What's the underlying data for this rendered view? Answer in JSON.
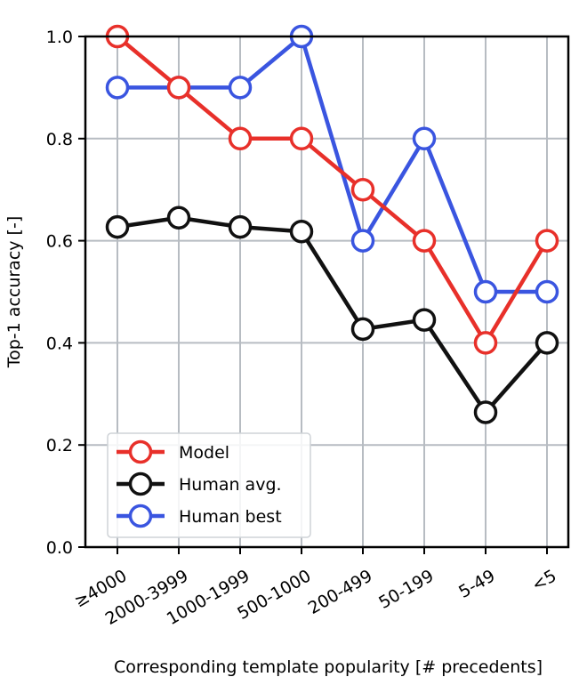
{
  "chart_data": {
    "type": "line",
    "xlabel": "Corresponding template popularity [# precedents]",
    "ylabel": "Top-1 accuracy [-]",
    "categories": [
      "≥4000",
      "2000-3999",
      "1000-1999",
      "500-1000",
      "200-499",
      "50-199",
      "5-49",
      "<5"
    ],
    "ylim": [
      0.0,
      1.0
    ],
    "yticks": [
      "0.0",
      "0.2",
      "0.4",
      "0.6",
      "0.8",
      "1.0"
    ],
    "grid": true,
    "legend_position": "lower-left",
    "series": [
      {
        "name": "Model",
        "color": "#e8302a",
        "values": [
          1.0,
          0.9,
          0.8,
          0.8,
          0.7,
          0.6,
          0.4,
          0.6
        ]
      },
      {
        "name": "Human avg.",
        "color": "#111111",
        "values": [
          0.627,
          0.645,
          0.627,
          0.618,
          0.427,
          0.445,
          0.264,
          0.4
        ]
      },
      {
        "name": "Human best",
        "color": "#3a55e0",
        "values": [
          0.9,
          0.9,
          0.9,
          1.0,
          0.6,
          0.8,
          0.5,
          0.5
        ]
      }
    ]
  }
}
